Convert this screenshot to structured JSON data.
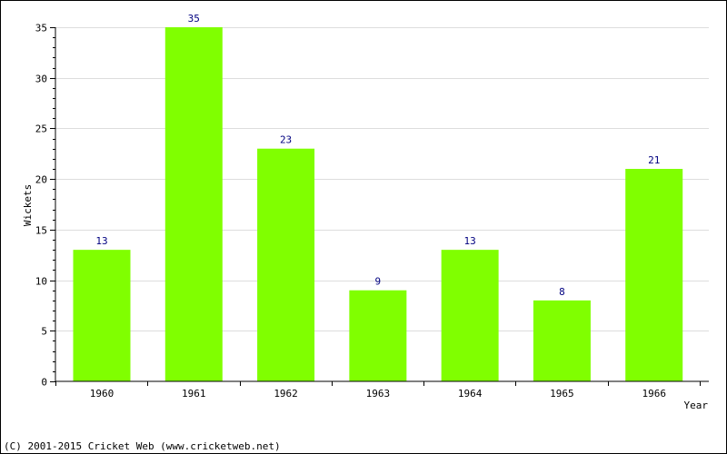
{
  "chart_data": {
    "type": "bar",
    "categories": [
      "1960",
      "1961",
      "1962",
      "1963",
      "1964",
      "1965",
      "1966"
    ],
    "values": [
      13,
      35,
      23,
      9,
      13,
      8,
      21
    ],
    "data_labels": [
      "13",
      "35",
      "23",
      "9",
      "13",
      "8",
      "21"
    ],
    "title": "",
    "xlabel": "Year",
    "ylabel": "Wickets",
    "ylim": [
      0,
      35
    ],
    "yticks": [
      0,
      5,
      10,
      15,
      20,
      25,
      30,
      35
    ],
    "ytick_labels": [
      "0",
      "5",
      "10",
      "15",
      "20",
      "25",
      "30",
      "35"
    ],
    "grid": true,
    "legend": "none",
    "bar_color": "#80ff00",
    "label_color": "#000080"
  },
  "footer": {
    "copyright": "(C) 2001-2015 Cricket Web (www.cricketweb.net)"
  }
}
